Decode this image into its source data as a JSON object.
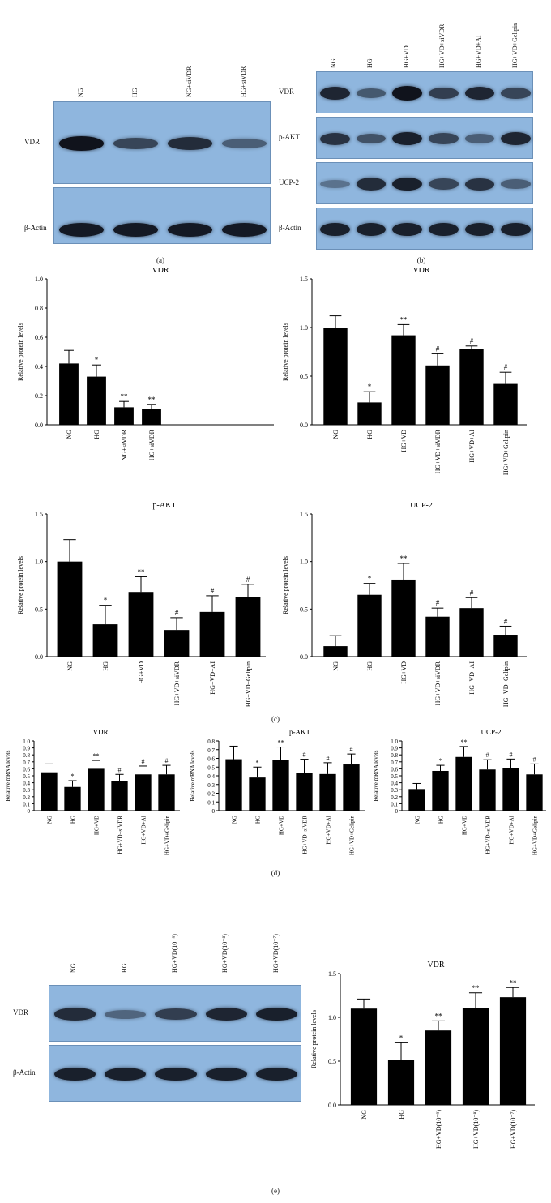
{
  "panels": {
    "a": "(a)",
    "b": "(b)",
    "c": "(c)",
    "d": "(d)",
    "e": "(e)"
  },
  "blots": {
    "a": {
      "lanes": [
        "NG",
        "HG",
        "NG+siVDR",
        "HG+siVDR"
      ],
      "rows": [
        {
          "label": "VDR",
          "intensity": [
            0.95,
            0.55,
            0.75,
            0.35
          ]
        },
        {
          "label": "β-Actin",
          "intensity": [
            0.9,
            0.9,
            0.9,
            0.9
          ]
        }
      ]
    },
    "b": {
      "lanes": [
        "NG",
        "HG",
        "HG+VD",
        "HG+VD+siVDR",
        "HG+VD+AI",
        "HG+VD+Gelipin"
      ],
      "rows": [
        {
          "label": "VDR",
          "intensity": [
            0.8,
            0.4,
            0.95,
            0.6,
            0.8,
            0.55
          ]
        },
        {
          "label": "p-AKT",
          "intensity": [
            0.7,
            0.45,
            0.85,
            0.55,
            0.35,
            0.8
          ]
        },
        {
          "label": "UCP-2",
          "intensity": [
            0.2,
            0.75,
            0.85,
            0.55,
            0.7,
            0.35
          ]
        },
        {
          "label": "β-Actin",
          "intensity": [
            0.85,
            0.85,
            0.85,
            0.85,
            0.85,
            0.85
          ]
        }
      ]
    },
    "e": {
      "lanes": [
        "NG",
        "HG",
        "HG+VD(10⁻⁹)",
        "HG+VD(10⁻⁸)",
        "HG+VD(10⁻⁷)"
      ],
      "rows": [
        {
          "label": "VDR",
          "intensity": [
            0.75,
            0.3,
            0.6,
            0.8,
            0.85
          ]
        },
        {
          "label": "β-Actin",
          "intensity": [
            0.85,
            0.85,
            0.85,
            0.85,
            0.85
          ]
        }
      ]
    }
  },
  "chart_data": [
    {
      "id": "a-vdr",
      "type": "bar",
      "title": "VDR",
      "ylabel": "Relative protein levels",
      "categories": [
        "NG",
        "HG",
        "NG+siVDR",
        "HG+siVDR"
      ],
      "values": [
        0.42,
        0.33,
        0.12,
        0.11
      ],
      "errors": [
        0.09,
        0.08,
        0.04,
        0.03
      ],
      "annotations": [
        "",
        "*",
        "**",
        "**"
      ],
      "ylim": [
        0,
        1.0
      ],
      "yticks": [
        "0.0",
        "0.2",
        "0.4",
        "0.6",
        "0.8",
        "1.0"
      ]
    },
    {
      "id": "b-vdr",
      "type": "bar",
      "title": "VDR",
      "ylabel": "Relative protein levels",
      "categories": [
        "NG",
        "HG",
        "HG+VD",
        "HG+VD+siVDR",
        "HG+VD+AI",
        "HG+VD+Gelipin"
      ],
      "values": [
        1.0,
        0.23,
        0.92,
        0.61,
        0.78,
        0.42
      ],
      "errors": [
        0.12,
        0.11,
        0.11,
        0.12,
        0.03,
        0.12
      ],
      "annotations": [
        "",
        "*",
        "**",
        "#",
        "#",
        "#"
      ],
      "ylim": [
        0,
        1.5
      ],
      "yticks": [
        "0.0",
        "0.5",
        "1.0",
        "1.5"
      ]
    },
    {
      "id": "c-pakt",
      "type": "bar",
      "title": "p-AKT",
      "ylabel": "Relative protein levels",
      "categories": [
        "NG",
        "HG",
        "HG+VD",
        "HG+VD+siVDR",
        "HG+VD+AI",
        "HG+VD+Gelipin"
      ],
      "values": [
        1.0,
        0.34,
        0.68,
        0.28,
        0.47,
        0.63
      ],
      "errors": [
        0.23,
        0.2,
        0.16,
        0.13,
        0.17,
        0.13
      ],
      "annotations": [
        "",
        "*",
        "**",
        "#",
        "#",
        "#"
      ],
      "ylim": [
        0,
        1.5
      ],
      "yticks": [
        "0.0",
        "0.5",
        "1.0",
        "1.5"
      ]
    },
    {
      "id": "c-ucp2",
      "type": "bar",
      "title": "UCP-2",
      "ylabel": "Relative protein levels",
      "categories": [
        "NG",
        "HG",
        "HG+VD",
        "HG+VD+siVDR",
        "HG+VD+AI",
        "HG+VD+Gelipin"
      ],
      "values": [
        0.11,
        0.65,
        0.81,
        0.42,
        0.51,
        0.23
      ],
      "errors": [
        0.11,
        0.12,
        0.17,
        0.09,
        0.11,
        0.09
      ],
      "annotations": [
        "",
        "*",
        "**",
        "#",
        "#",
        "#"
      ],
      "ylim": [
        0,
        1.5
      ],
      "yticks": [
        "0.0",
        "0.5",
        "1.0",
        "1.5"
      ]
    },
    {
      "id": "d-vdr",
      "type": "bar",
      "title": "VDR",
      "ylabel": "Relative mRNA levels",
      "categories": [
        "NG",
        "HG",
        "HG+VD",
        "HG+VD+siVDR",
        "HG+VD+AI",
        "HG+VD+Gelipin"
      ],
      "values": [
        0.55,
        0.34,
        0.6,
        0.42,
        0.52,
        0.52
      ],
      "errors": [
        0.12,
        0.09,
        0.12,
        0.1,
        0.12,
        0.13
      ],
      "annotations": [
        "",
        "*",
        "**",
        "#",
        "#",
        "#"
      ],
      "ylim": [
        0,
        1.0
      ],
      "yticks": [
        "0",
        "0.1",
        "0.2",
        "0.3",
        "0.4",
        "0.5",
        "0.6",
        "0.7",
        "0.8",
        "0.9",
        "1.0"
      ]
    },
    {
      "id": "d-pakt",
      "type": "bar",
      "title": "p-AKT",
      "ylabel": "Relative mRNA levels",
      "categories": [
        "NG",
        "HG",
        "HG+VD",
        "HG+VD+siVDR",
        "HG+VD+AI",
        "HG+VD+Gelipin"
      ],
      "values": [
        0.59,
        0.38,
        0.58,
        0.43,
        0.42,
        0.53
      ],
      "errors": [
        0.15,
        0.12,
        0.15,
        0.16,
        0.13,
        0.12
      ],
      "annotations": [
        "",
        "*",
        "**",
        "#",
        "#",
        "#"
      ],
      "ylim": [
        0,
        0.8
      ],
      "yticks": [
        "0",
        "0.1",
        "0.2",
        "0.3",
        "0.4",
        "0.5",
        "0.6",
        "0.7",
        "0.8"
      ]
    },
    {
      "id": "d-ucp2",
      "type": "bar",
      "title": "UCP-2",
      "ylabel": "Relative mRNA levels",
      "categories": [
        "NG",
        "HG",
        "HG+VD",
        "HG+VD+siVDR",
        "HG+VD+AI",
        "HG+VD+Gelipin"
      ],
      "values": [
        0.31,
        0.57,
        0.77,
        0.59,
        0.61,
        0.52
      ],
      "errors": [
        0.08,
        0.08,
        0.15,
        0.14,
        0.13,
        0.15
      ],
      "annotations": [
        "",
        "*",
        "**",
        "#",
        "#",
        "#"
      ],
      "ylim": [
        0,
        1.0
      ],
      "yticks": [
        "0",
        "0.1",
        "0.2",
        "0.3",
        "0.4",
        "0.5",
        "0.6",
        "0.7",
        "0.8",
        "0.9",
        "1.0"
      ]
    },
    {
      "id": "e-vdr",
      "type": "bar",
      "title": "VDR",
      "ylabel": "Relative protein levels",
      "categories": [
        "NG",
        "HG",
        "HG+VD(10⁻⁹)",
        "HG+VD(10⁻⁸)",
        "HG+VD(10⁻⁷)"
      ],
      "values": [
        1.1,
        0.51,
        0.85,
        1.11,
        1.23
      ],
      "errors": [
        0.11,
        0.2,
        0.11,
        0.17,
        0.11
      ],
      "annotations": [
        "",
        "*",
        "**",
        "**",
        "**"
      ],
      "ylim": [
        0,
        1.5
      ],
      "yticks": [
        "0.0",
        "0.5",
        "1.0",
        "1.5"
      ]
    }
  ]
}
